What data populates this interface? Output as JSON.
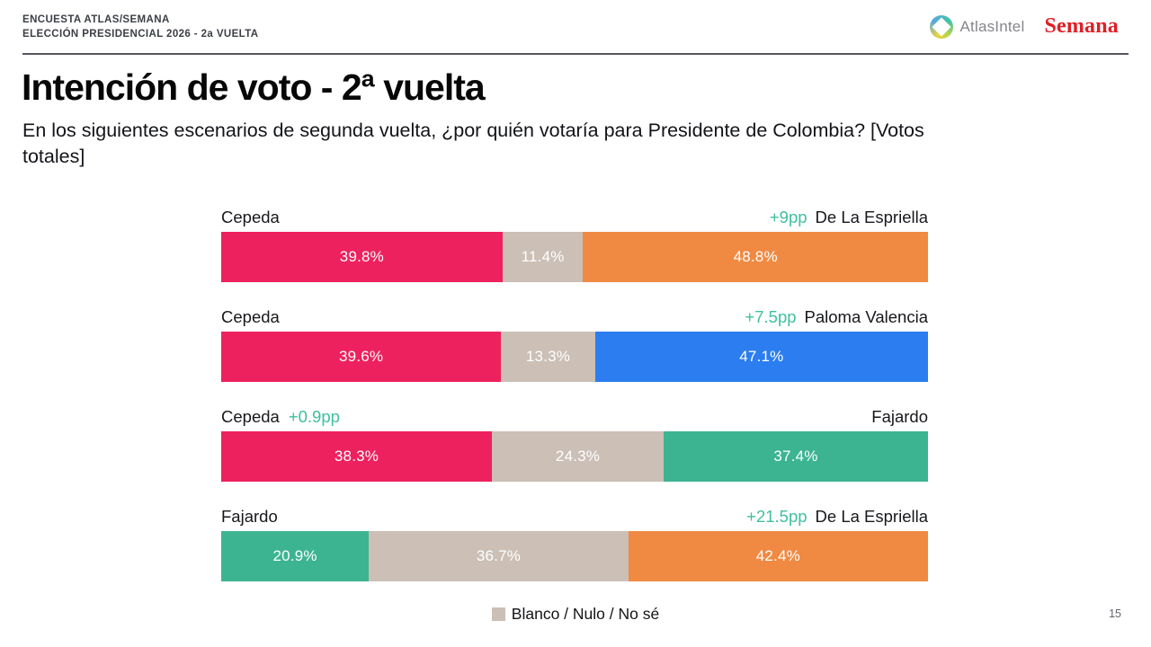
{
  "header": {
    "kicker_line1": "ENCUESTA ATLAS/SEMANA",
    "kicker_line2": "ELECCIÓN PRESIDENCIAL 2026 - 2a VUELTA",
    "atlas_logo_text": "AtlasIntel",
    "semana_logo_text": "Semana"
  },
  "title": "Intención de voto - 2ª vuelta",
  "subtitle": "En los siguientes escenarios de segunda vuelta, ¿por quién votaría para Presidente de Colombia? [Votos totales]",
  "legend": {
    "label": "Blanco / Nulo / No sé",
    "color": "taupe"
  },
  "page_number": "15",
  "colors": {
    "pink": "#ed215e",
    "taupe": "#cbbfb6",
    "orange": "#f08a42",
    "blue": "#2b7df0",
    "teal": "#3cb491",
    "pp_green": "#3fbf9f"
  },
  "chart_data": {
    "type": "bar",
    "orientation": "horizontal",
    "stacked": true,
    "value_unit": "%",
    "xlim": [
      0,
      100
    ],
    "grid": false,
    "middle_category_legend": "Blanco / Nulo / No sé",
    "scenarios": [
      {
        "left": {
          "name": "Cepeda",
          "pp": ""
        },
        "right": {
          "pp": "+9pp",
          "name": "De La Espriella"
        },
        "segments": [
          {
            "label": "39.8%",
            "value": 39.8,
            "color": "pink"
          },
          {
            "label": "11.4%",
            "value": 11.4,
            "color": "taupe"
          },
          {
            "label": "48.8%",
            "value": 48.8,
            "color": "orange"
          }
        ]
      },
      {
        "left": {
          "name": "Cepeda",
          "pp": ""
        },
        "right": {
          "pp": "+7.5pp",
          "name": "Paloma Valencia"
        },
        "segments": [
          {
            "label": "39.6%",
            "value": 39.6,
            "color": "pink"
          },
          {
            "label": "13.3%",
            "value": 13.3,
            "color": "taupe"
          },
          {
            "label": "47.1%",
            "value": 47.1,
            "color": "blue"
          }
        ]
      },
      {
        "left": {
          "name": "Cepeda",
          "pp": "+0.9pp"
        },
        "right": {
          "pp": "",
          "name": "Fajardo"
        },
        "segments": [
          {
            "label": "38.3%",
            "value": 38.3,
            "color": "pink"
          },
          {
            "label": "24.3%",
            "value": 24.3,
            "color": "taupe"
          },
          {
            "label": "37.4%",
            "value": 37.4,
            "color": "teal"
          }
        ]
      },
      {
        "left": {
          "name": "Fajardo",
          "pp": ""
        },
        "right": {
          "pp": "+21.5pp",
          "name": "De La Espriella"
        },
        "segments": [
          {
            "label": "20.9%",
            "value": 20.9,
            "color": "teal"
          },
          {
            "label": "36.7%",
            "value": 36.7,
            "color": "taupe"
          },
          {
            "label": "42.4%",
            "value": 42.4,
            "color": "orange"
          }
        ]
      }
    ]
  }
}
